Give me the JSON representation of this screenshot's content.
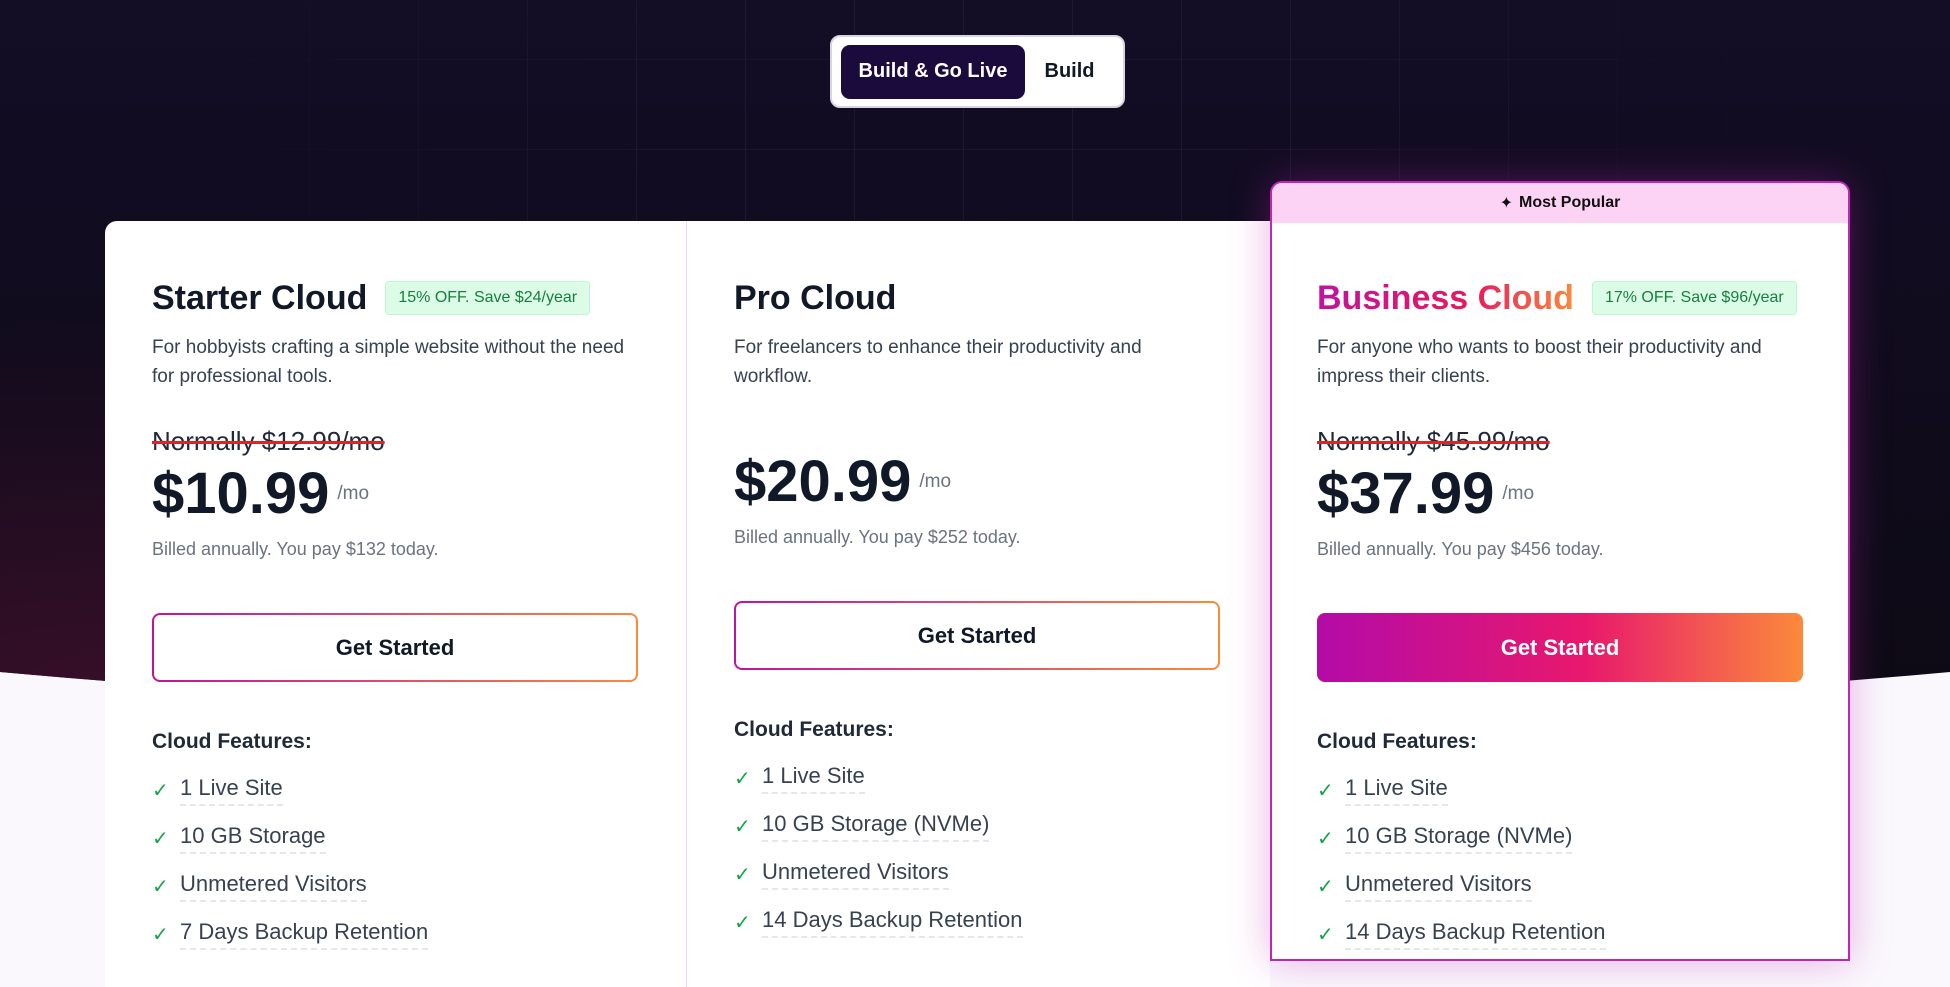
{
  "toggle": {
    "options": [
      "Build & Go Live",
      "Build"
    ],
    "selected": "Build & Go Live"
  },
  "colors": {
    "background_dark": "#0e0a1a",
    "toggle_active": "#1b0a3c",
    "accent_start": "#c0139f",
    "accent_end": "#fb8a3b",
    "badge_bg": "#dcfce7",
    "badge_text": "#15803d",
    "check": "#16a34a",
    "popular_bg": "#fcd3f5"
  },
  "plans": [
    {
      "name": "Starter Cloud",
      "badge": "15% OFF. Save $24/year",
      "description": "For hobbyists crafting a simple website without the need for professional tools.",
      "normal_price": "Normally $12.99/mo",
      "price": "$10.99",
      "per": "/mo",
      "billed": "Billed annually. You pay $132 today.",
      "cta": "Get Started",
      "features_heading": "Cloud Features:",
      "features": [
        "1 Live Site",
        "10 GB Storage",
        "Unmetered Visitors",
        "7 Days Backup Retention"
      ]
    },
    {
      "name": "Pro Cloud",
      "description": "For freelancers to enhance their productivity and workflow.",
      "price": "$20.99",
      "per": "/mo",
      "billed": "Billed annually. You pay $252 today.",
      "cta": "Get Started",
      "features_heading": "Cloud Features:",
      "features": [
        "1 Live Site",
        "10 GB Storage (NVMe)",
        "Unmetered Visitors",
        "14 Days Backup Retention"
      ]
    },
    {
      "ribbon": "Most Popular",
      "ribbon_icon": "sparkles-icon",
      "name": "Business Cloud",
      "badge": "17% OFF. Save $96/year",
      "description": "For anyone who wants to boost their productivity and impress their clients.",
      "normal_price": "Normally $45.99/mo",
      "price": "$37.99",
      "per": "/mo",
      "billed": "Billed annually. You pay $456 today.",
      "cta": "Get Started",
      "features_heading": "Cloud Features:",
      "features": [
        "1 Live Site",
        "10 GB Storage (NVMe)",
        "Unmetered Visitors",
        "14 Days Backup Retention"
      ]
    }
  ]
}
